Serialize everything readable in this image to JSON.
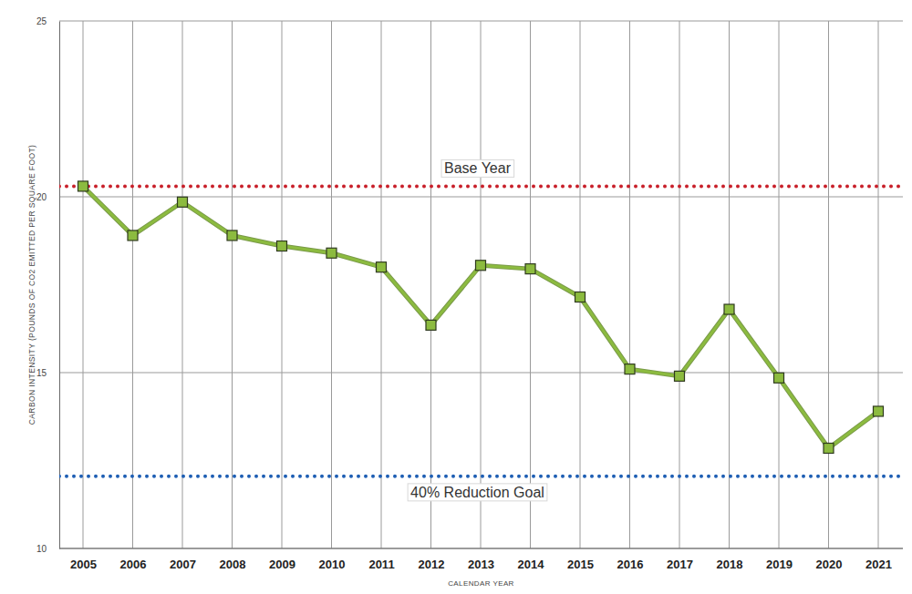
{
  "chart_data": {
    "type": "line",
    "y_label": "CARBON INTENSITY (POUNDS OF CO2 EMITTED PER SQUARE FOOT)",
    "x_label": "CALENDAR YEAR",
    "categories": [
      "2005",
      "2006",
      "2007",
      "2008",
      "2009",
      "2010",
      "2011",
      "2012",
      "2013",
      "2014",
      "2015",
      "2016",
      "2017",
      "2018",
      "2019",
      "2020",
      "2021"
    ],
    "series": [
      {
        "color": "#8cbb3f",
        "marker": "square",
        "values": [
          20.3,
          18.9,
          19.85,
          18.9,
          18.6,
          18.4,
          18.0,
          16.35,
          18.05,
          17.95,
          17.15,
          15.1,
          14.9,
          16.8,
          14.85,
          12.85,
          13.9
        ]
      }
    ],
    "reference_lines": [
      {
        "label": "Base Year",
        "value": 20.3,
        "color": "#c8202a",
        "line_style": "dotted"
      },
      {
        "label": "40% Reduction Goal",
        "value": 12.05,
        "color": "#1f5fb4",
        "line_style": "dotted"
      }
    ],
    "ylim": [
      10,
      25
    ],
    "yticks": [
      10,
      15,
      20,
      25
    ],
    "grid": true
  }
}
